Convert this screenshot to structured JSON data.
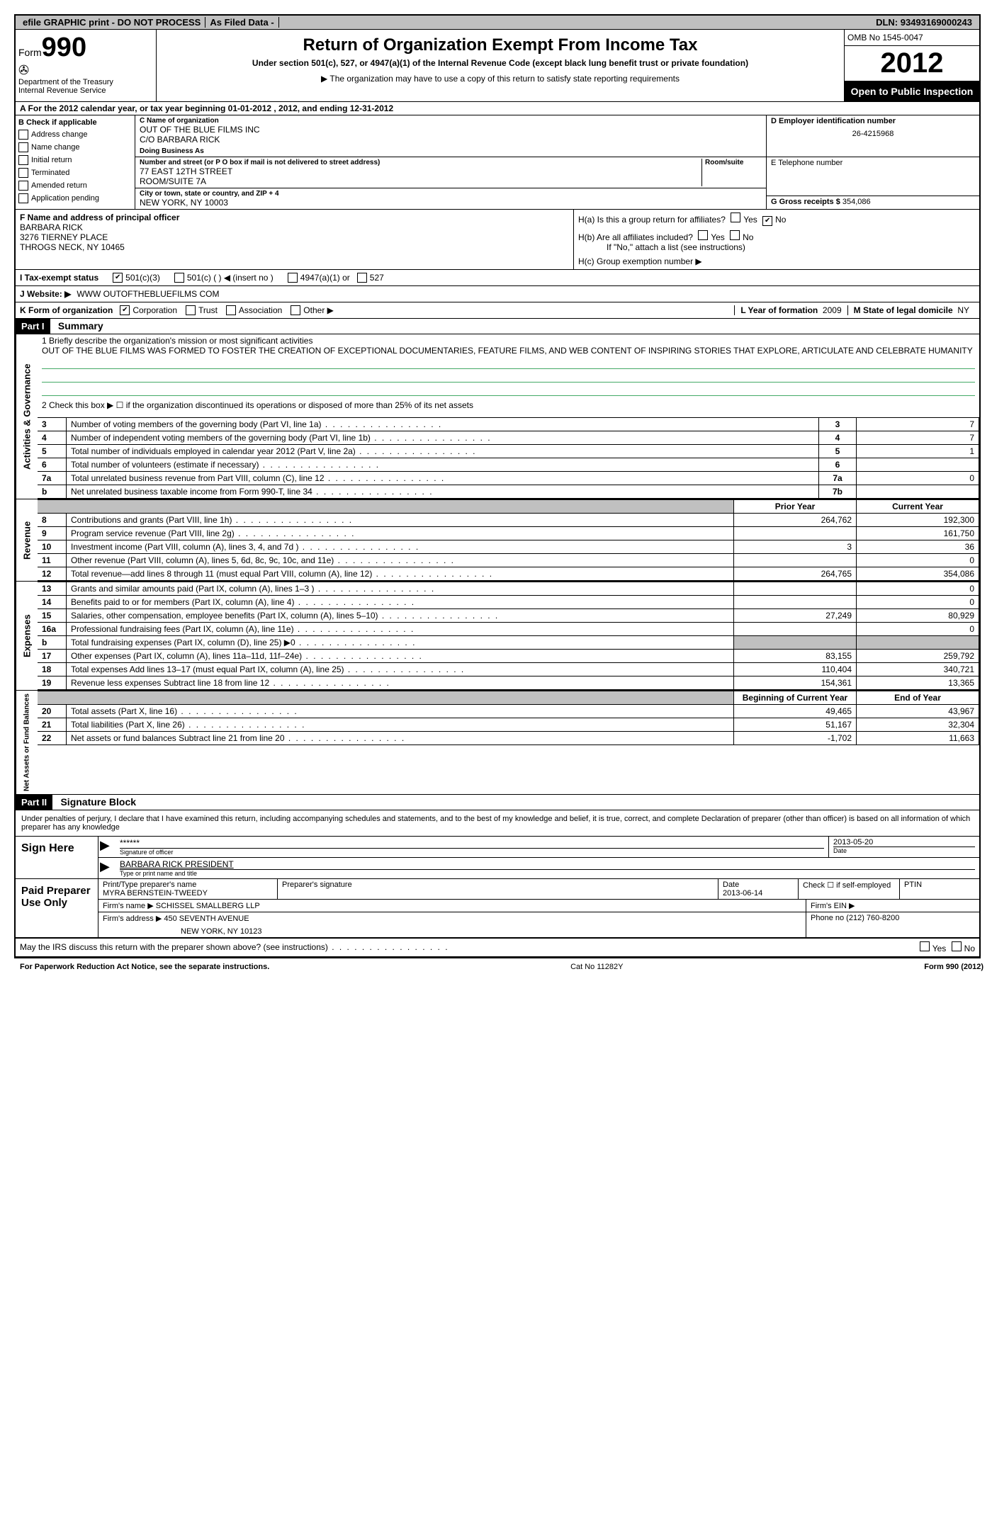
{
  "topbar": {
    "efile": "efile GRAPHIC print - DO NOT PROCESS",
    "asfiled": "As Filed Data -",
    "dln_label": "DLN:",
    "dln": "93493169000243"
  },
  "header": {
    "form_label": "Form",
    "form_no": "990",
    "dept": "Department of the Treasury",
    "irs": "Internal Revenue Service",
    "title": "Return of Organization Exempt From Income Tax",
    "subtitle": "Under section 501(c), 527, or 4947(a)(1) of the Internal Revenue Code (except black lung benefit trust or private foundation)",
    "note": "The organization may have to use a copy of this return to satisfy state reporting requirements",
    "omb": "OMB No 1545-0047",
    "year": "2012",
    "open": "Open to Public Inspection"
  },
  "lineA": "A  For the 2012 calendar year, or tax year beginning 01-01-2012     , 2012, and ending 12-31-2012",
  "boxB": {
    "label": "B  Check if applicable",
    "items": [
      "Address change",
      "Name change",
      "Initial return",
      "Terminated",
      "Amended return",
      "Application pending"
    ]
  },
  "boxC": {
    "name_label": "C Name of organization",
    "name1": "OUT OF THE BLUE FILMS INC",
    "name2": "C/O BARBARA RICK",
    "dba_label": "Doing Business As",
    "addr_label": "Number and street (or P O  box if mail is not delivered to street address)",
    "room_label": "Room/suite",
    "addr1": "77 EAST 12TH STREET",
    "addr2": "ROOM/SUITE 7A",
    "city_label": "City or town, state or country, and ZIP + 4",
    "city": "NEW YORK, NY  10003"
  },
  "boxD": {
    "ein_label": "D Employer identification number",
    "ein": "26-4215968",
    "tel_label": "E Telephone number",
    "gross_label": "G Gross receipts $",
    "gross": "354,086"
  },
  "boxF": {
    "label": "F   Name and address of principal officer",
    "name": "BARBARA RICK",
    "addr": "3276 TIERNEY PLACE",
    "city": "THROGS NECK, NY  10465"
  },
  "boxH": {
    "a": "H(a)  Is this a group return for affiliates?",
    "b": "H(b)  Are all affiliates included?",
    "b_note": "If \"No,\" attach a list  (see instructions)",
    "c": "H(c)   Group exemption number ▶",
    "yes": "Yes",
    "no": "No"
  },
  "statusI": {
    "label": "I   Tax-exempt status",
    "opts": [
      "501(c)(3)",
      "501(c) (  ) ◀ (insert no )",
      "4947(a)(1) or",
      "527"
    ]
  },
  "lineJ": {
    "label": "J   Website: ▶",
    "val": "WWW OUTOFTHEBLUEFILMS COM"
  },
  "lineK": {
    "label": "K Form of organization",
    "opts": [
      "Corporation",
      "Trust",
      "Association",
      "Other ▶"
    ],
    "l_label": "L Year of formation",
    "l_val": "2009",
    "m_label": "M State of legal domicile",
    "m_val": "NY"
  },
  "part1": {
    "tag": "Part I",
    "title": "Summary",
    "side1": "Activities & Governance",
    "l1a": "1   Briefly describe the organization's mission or most significant activities",
    "l1b": "OUT OF THE BLUE FILMS WAS FORMED TO FOSTER THE CREATION OF EXCEPTIONAL DOCUMENTARIES, FEATURE FILMS, AND WEB CONTENT OF INSPIRING STORIES THAT EXPLORE, ARTICULATE AND CELEBRATE HUMANITY",
    "l2": "2   Check this box ▶ ☐ if the organization discontinued its operations or disposed of more than 25% of its net assets",
    "rows_gov": [
      {
        "n": "3",
        "d": "Number of voting members of the governing body (Part VI, line 1a)",
        "ln": "3",
        "v": "7"
      },
      {
        "n": "4",
        "d": "Number of independent voting members of the governing body (Part VI, line 1b)",
        "ln": "4",
        "v": "7"
      },
      {
        "n": "5",
        "d": "Total number of individuals employed in calendar year 2012 (Part V, line 2a)",
        "ln": "5",
        "v": "1"
      },
      {
        "n": "6",
        "d": "Total number of volunteers (estimate if necessary)",
        "ln": "6",
        "v": ""
      },
      {
        "n": "7a",
        "d": "Total unrelated business revenue from Part VIII, column (C), line 12",
        "ln": "7a",
        "v": "0"
      },
      {
        "n": "b",
        "d": "Net unrelated business taxable income from Form 990-T, line 34",
        "ln": "7b",
        "v": ""
      }
    ],
    "hdr_prior": "Prior Year",
    "hdr_curr": "Current Year",
    "side2": "Revenue",
    "rows_rev": [
      {
        "n": "8",
        "d": "Contributions and grants (Part VIII, line 1h)",
        "p": "264,762",
        "c": "192,300"
      },
      {
        "n": "9",
        "d": "Program service revenue (Part VIII, line 2g)",
        "p": "",
        "c": "161,750"
      },
      {
        "n": "10",
        "d": "Investment income (Part VIII, column (A), lines 3, 4, and 7d )",
        "p": "3",
        "c": "36"
      },
      {
        "n": "11",
        "d": "Other revenue (Part VIII, column (A), lines 5, 6d, 8c, 9c, 10c, and 11e)",
        "p": "",
        "c": "0"
      },
      {
        "n": "12",
        "d": "Total revenue—add lines 8 through 11 (must equal Part VIII, column (A), line 12)",
        "p": "264,765",
        "c": "354,086"
      }
    ],
    "side3": "Expenses",
    "rows_exp": [
      {
        "n": "13",
        "d": "Grants and similar amounts paid (Part IX, column (A), lines 1–3 )",
        "p": "",
        "c": "0"
      },
      {
        "n": "14",
        "d": "Benefits paid to or for members (Part IX, column (A), line 4)",
        "p": "",
        "c": "0"
      },
      {
        "n": "15",
        "d": "Salaries, other compensation, employee benefits (Part IX, column (A), lines 5–10)",
        "p": "27,249",
        "c": "80,929"
      },
      {
        "n": "16a",
        "d": "Professional fundraising fees (Part IX, column (A), line 11e)",
        "p": "",
        "c": "0"
      },
      {
        "n": "b",
        "d": "Total fundraising expenses (Part IX, column (D), line 25) ▶0",
        "p": "shade",
        "c": "shade"
      },
      {
        "n": "17",
        "d": "Other expenses (Part IX, column (A), lines 11a–11d, 11f–24e)",
        "p": "83,155",
        "c": "259,792"
      },
      {
        "n": "18",
        "d": "Total expenses  Add lines 13–17 (must equal Part IX, column (A), line 25)",
        "p": "110,404",
        "c": "340,721"
      },
      {
        "n": "19",
        "d": "Revenue less expenses  Subtract line 18 from line 12",
        "p": "154,361",
        "c": "13,365"
      }
    ],
    "side4": "Net Assets or Fund Balances",
    "hdr_beg": "Beginning of Current Year",
    "hdr_end": "End of Year",
    "rows_net": [
      {
        "n": "20",
        "d": "Total assets (Part X, line 16)",
        "p": "49,465",
        "c": "43,967"
      },
      {
        "n": "21",
        "d": "Total liabilities (Part X, line 26)",
        "p": "51,167",
        "c": "32,304"
      },
      {
        "n": "22",
        "d": "Net assets or fund balances  Subtract line 21 from line 20",
        "p": "-1,702",
        "c": "11,663"
      }
    ]
  },
  "part2": {
    "tag": "Part II",
    "title": "Signature Block",
    "decl": "Under penalties of perjury, I declare that I have examined this return, including accompanying schedules and statements, and to the best of my knowledge and belief, it is true, correct, and complete  Declaration of preparer (other than officer) is based on all information of which preparer has any knowledge",
    "sign_here": "Sign Here",
    "sig_mask": "******",
    "sig_label": "Signature of officer",
    "sig_date": "2013-05-20",
    "date_label": "Date",
    "officer_name": "BARBARA RICK  PRESIDENT",
    "officer_label": "Type or print name and title",
    "paid": "Paid Preparer Use Only",
    "prep_name_label": "Print/Type preparer's name",
    "prep_name": "MYRA BERNSTEIN-TWEEDY",
    "prep_sig_label": "Preparer's signature",
    "prep_date_label": "Date",
    "prep_date": "2013-06-14",
    "prep_check": "Check ☐ if self-employed",
    "ptin": "PTIN",
    "firm_name_label": "Firm's name      ▶",
    "firm_name": "SCHISSEL SMALLBERG LLP",
    "firm_ein": "Firm's EIN ▶",
    "firm_addr_label": "Firm's address ▶",
    "firm_addr1": "450 SEVENTH AVENUE",
    "firm_addr2": "NEW YORK, NY  10123",
    "firm_phone_label": "Phone no",
    "firm_phone": "(212) 760-8200",
    "discuss": "May the IRS discuss this return with the preparer shown above? (see instructions)"
  },
  "footer": {
    "left": "For Paperwork Reduction Act Notice, see the separate instructions.",
    "mid": "Cat No  11282Y",
    "right": "Form 990 (2012)"
  }
}
